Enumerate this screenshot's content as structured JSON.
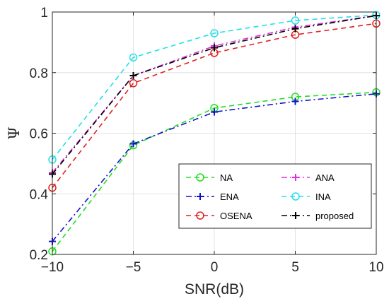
{
  "chart_data": {
    "type": "line",
    "xlabel": "SNR(dB)",
    "ylabel": "Ψ",
    "x": [
      -10,
      -5,
      0,
      5,
      10
    ],
    "xlim": [
      -10,
      10
    ],
    "ylim": [
      0.2,
      1.0
    ],
    "xticks": [
      -10,
      -5,
      0,
      5,
      10
    ],
    "xtick_labels": [
      "−10",
      "−5",
      "0",
      "5",
      "10"
    ],
    "yticks": [
      0.2,
      0.4,
      0.6,
      0.8,
      1.0
    ],
    "ytick_labels": [
      "0.2",
      "0.4",
      "0.6",
      "0.8",
      "1"
    ],
    "grid": true,
    "legend_position": "bottom-right",
    "series": [
      {
        "name": "NA",
        "color": "#22dd22",
        "marker": "circle",
        "dash": "dashed",
        "values": [
          0.21,
          0.56,
          0.683,
          0.72,
          0.735
        ]
      },
      {
        "name": "ENA",
        "color": "#1111cc",
        "marker": "plus",
        "dash": "dashdot",
        "values": [
          0.243,
          0.565,
          0.67,
          0.705,
          0.73
        ]
      },
      {
        "name": "OSENA",
        "color": "#e02020",
        "marker": "circle",
        "dash": "dashed",
        "values": [
          0.42,
          0.765,
          0.865,
          0.925,
          0.962
        ]
      },
      {
        "name": "ANA",
        "color": "#e030e0",
        "marker": "plus",
        "dash": "dashdot",
        "values": [
          0.47,
          0.79,
          0.888,
          0.95,
          0.988
        ]
      },
      {
        "name": "INA",
        "color": "#22e0e8",
        "marker": "circle",
        "dash": "dashed",
        "values": [
          0.513,
          0.85,
          0.93,
          0.972,
          0.99
        ]
      },
      {
        "name": "proposed",
        "color": "#000000",
        "marker": "plus",
        "dash": "dashdot",
        "values": [
          0.465,
          0.79,
          0.882,
          0.945,
          0.988
        ]
      }
    ]
  }
}
